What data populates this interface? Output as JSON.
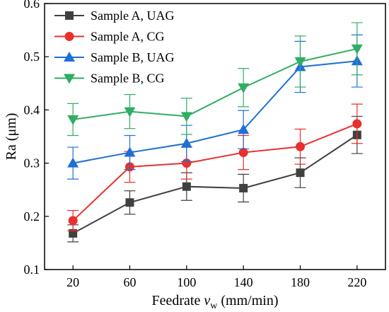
{
  "chart_data": {
    "type": "line",
    "x": [
      20,
      60,
      100,
      140,
      180,
      220
    ],
    "xticks": [
      "20",
      "60",
      "100",
      "140",
      "180",
      "220"
    ],
    "yticks": [
      "0.1",
      "0.2",
      "0.3",
      "0.4",
      "0.5",
      "0.6"
    ],
    "xlim": [
      0,
      240
    ],
    "ylim": [
      0.1,
      0.6
    ],
    "xlabel_prefix": "Feedrate ",
    "xlabel_var": "v",
    "xlabel_sub": "w",
    "xlabel_unit": " (mm/min)",
    "ylabel": "Ra (μm)",
    "legend_position": "top-left",
    "grid": false,
    "series": [
      {
        "name": "Sample A, UAG",
        "color": "#404040",
        "marker": "square",
        "values": [
          0.168,
          0.226,
          0.256,
          0.253,
          0.282,
          0.353
        ],
        "errors": [
          0.016,
          0.022,
          0.026,
          0.026,
          0.028,
          0.035
        ]
      },
      {
        "name": "Sample A, CG",
        "color": "#e8302e",
        "marker": "circle",
        "values": [
          0.192,
          0.293,
          0.3,
          0.32,
          0.331,
          0.374
        ],
        "errors": [
          0.019,
          0.029,
          0.03,
          0.032,
          0.033,
          0.037
        ]
      },
      {
        "name": "Sample B, UAG",
        "color": "#1f6fd6",
        "marker": "triangle-up",
        "values": [
          0.3,
          0.32,
          0.337,
          0.363,
          0.481,
          0.492
        ],
        "errors": [
          0.03,
          0.032,
          0.034,
          0.036,
          0.048,
          0.049
        ]
      },
      {
        "name": "Sample B, CG",
        "color": "#2fae64",
        "marker": "triangle-down",
        "values": [
          0.382,
          0.397,
          0.388,
          0.442,
          0.491,
          0.515
        ],
        "errors": [
          0.03,
          0.032,
          0.034,
          0.036,
          0.048,
          0.049
        ]
      }
    ]
  }
}
